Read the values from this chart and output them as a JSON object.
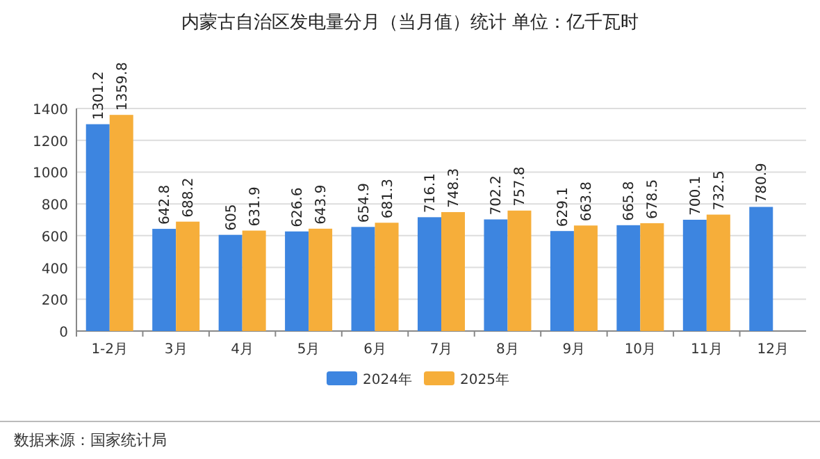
{
  "chart_data": {
    "type": "bar",
    "title": "内蒙古自治区发电量分月（当月值）统计  单位：亿千瓦时",
    "categories": [
      "1-2月",
      "3月",
      "4月",
      "5月",
      "6月",
      "7月",
      "8月",
      "9月",
      "10月",
      "11月",
      "12月"
    ],
    "series": [
      {
        "name": "2024年",
        "color": "#3d85e0",
        "values": [
          1301.2,
          642.8,
          605,
          626.6,
          654.9,
          716.1,
          702.2,
          629.1,
          665.8,
          700.1,
          780.9
        ]
      },
      {
        "name": "2025年",
        "color": "#f6ae3a",
        "values": [
          1359.8,
          688.2,
          631.9,
          643.9,
          681.3,
          748.3,
          757.8,
          663.8,
          678.5,
          732.5,
          null
        ]
      }
    ],
    "ylim": [
      0,
      1400
    ],
    "yticks": [
      0,
      200,
      400,
      600,
      800,
      1000,
      1200,
      1400
    ],
    "grid": "y",
    "legend": "bottom",
    "data_labels": true,
    "annotations": [
      "数据来源：国家统计局"
    ]
  }
}
